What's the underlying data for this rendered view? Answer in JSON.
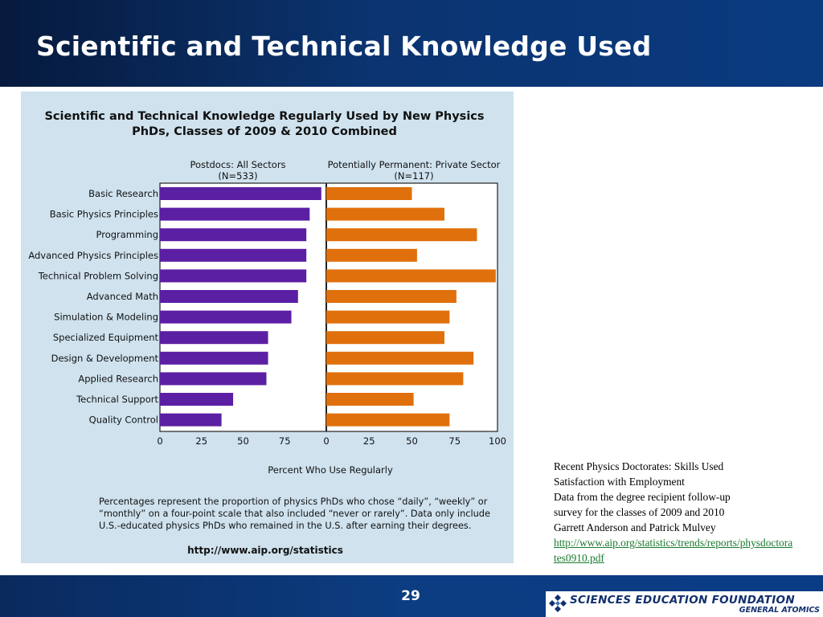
{
  "slide": {
    "title": "Scientific and Technical Knowledge Used",
    "page_number": "29"
  },
  "colors": {
    "header_bg": "#0b3470",
    "chart_bg": "#cfe2ee",
    "postdoc_bar": "#5b1fa3",
    "private_bar": "#e0700c",
    "link": "#1a7a2e"
  },
  "chart_data": {
    "type": "bar",
    "orientation": "horizontal",
    "title": "Scientific and Technical Knowledge Regularly Used by New Physics PhDs, Classes of 2009 & 2010 Combined",
    "title_lines": [
      "Scientific and Technical Knowledge Regularly Used by New Physics",
      "PhDs, Classes of 2009 & 2010 Combined"
    ],
    "xlabel": "Percent Who Use Regularly",
    "categories": [
      "Basic Research",
      "Basic Physics Principles",
      "Programming",
      "Advanced Physics Principles",
      "Technical Problem Solving",
      "Advanced Math",
      "Simulation & Modeling",
      "Specialized Equipment",
      "Design & Development",
      "Applied Research",
      "Technical Support",
      "Quality Control"
    ],
    "panels": [
      {
        "header_lines": [
          "Postdocs: All Sectors",
          "(N=533)"
        ],
        "xlim": [
          0,
          100
        ],
        "ticks": [
          0,
          25,
          50,
          75
        ],
        "color": "#5b1fa3",
        "values": [
          97,
          90,
          88,
          88,
          88,
          83,
          79,
          65,
          65,
          64,
          44,
          37
        ]
      },
      {
        "header_lines": [
          "Potentially Permanent: Private Sector",
          "(N=117)"
        ],
        "xlim": [
          0,
          100
        ],
        "ticks": [
          0,
          25,
          50,
          75,
          100
        ],
        "color": "#e0700c",
        "values": [
          50,
          69,
          88,
          53,
          99,
          76,
          72,
          69,
          86,
          80,
          51,
          72
        ]
      }
    ],
    "footnote_lines": [
      "Percentages represent the proportion of physics PhDs who chose “daily”, “weekly” or",
      "“monthly” on a four-point scale that also included “never or rarely”.  Data only include",
      "U.S.-educated physics PhDs who remained in the U.S. after earning their degrees."
    ],
    "source_url": "http://www.aip.org/statistics",
    "grid": false,
    "legend": "none"
  },
  "side_note": {
    "line1": "Recent Physics Doctorates:  Skills Used",
    "line2": "Satisfaction with Employment",
    "line3": "Data from the degree recipient follow-up",
    "line4": "survey for the classes of 2009 and 2010",
    "line5": "Garrett Anderson and Patrick Mulvey",
    "link": "http://www.aip.org/statistics/trends/reports/physdoctorates0910.pdf"
  },
  "logo": {
    "line1": "SCIENCES EDUCATION FOUNDATION",
    "line2": "GENERAL ATOMICS",
    "icon": "diamond-cluster-icon"
  }
}
